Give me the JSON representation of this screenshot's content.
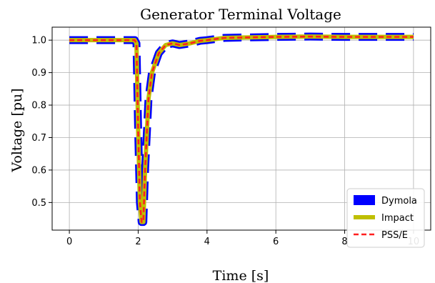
{
  "chart_data": {
    "type": "line",
    "title": "Generator Terminal Voltage",
    "xlabel": "Time [s]",
    "ylabel": "Voltage [pu]",
    "xlim": [
      -0.5,
      10.5
    ],
    "ylim": [
      0.415,
      1.04
    ],
    "x_ticks": [
      0,
      2,
      4,
      6,
      8,
      10
    ],
    "y_ticks": [
      0.5,
      0.6,
      0.7,
      0.8,
      0.9,
      1.0
    ],
    "x_tick_labels": [
      "0",
      "2",
      "4",
      "6",
      "8",
      "10"
    ],
    "y_tick_labels": [
      "0.5",
      "0.6",
      "0.7",
      "0.8",
      "0.9",
      "1.0"
    ],
    "grid": true,
    "legend_position": "bottom-right",
    "series": [
      {
        "name": "Dymola",
        "style": "dashed",
        "color": "#0000ff",
        "x": [
          0,
          1.9,
          1.95,
          2.0,
          2.05,
          2.1,
          2.15,
          2.2,
          2.3,
          2.4,
          2.6,
          2.8,
          3.0,
          3.2,
          3.5,
          3.8,
          4.0,
          4.5,
          5.0,
          6.0,
          7.0,
          8.0,
          9.0,
          10.0
        ],
        "y": [
          1.0,
          1.0,
          0.99,
          0.72,
          0.5,
          0.44,
          0.44,
          0.6,
          0.82,
          0.9,
          0.96,
          0.985,
          0.99,
          0.985,
          0.99,
          0.998,
          1.0,
          1.007,
          1.008,
          1.01,
          1.011,
          1.01,
          1.01,
          1.01
        ]
      },
      {
        "name": "Impact",
        "style": "solid",
        "color": "#bfbf00",
        "x": [
          0,
          1.9,
          1.95,
          2.0,
          2.05,
          2.1,
          2.15,
          2.2,
          2.3,
          2.4,
          2.6,
          2.8,
          3.0,
          3.2,
          3.5,
          3.8,
          4.0,
          4.5,
          5.0,
          6.0,
          7.0,
          8.0,
          9.0,
          10.0
        ],
        "y": [
          1.0,
          1.0,
          0.99,
          0.72,
          0.5,
          0.44,
          0.44,
          0.6,
          0.82,
          0.9,
          0.96,
          0.985,
          0.99,
          0.985,
          0.99,
          0.998,
          1.0,
          1.007,
          1.008,
          1.01,
          1.011,
          1.01,
          1.01,
          1.01
        ]
      },
      {
        "name": "PSS/E",
        "style": "dashed",
        "color": "#ff2020",
        "x": [
          0,
          1.9,
          1.95,
          2.0,
          2.05,
          2.1,
          2.15,
          2.2,
          2.3,
          2.4,
          2.6,
          2.8,
          3.0,
          3.2,
          3.5,
          3.8,
          4.0,
          4.5,
          5.0,
          6.0,
          7.0,
          8.0,
          9.0,
          10.0
        ],
        "y": [
          1.0,
          1.0,
          0.99,
          0.72,
          0.5,
          0.44,
          0.44,
          0.6,
          0.82,
          0.9,
          0.96,
          0.985,
          0.99,
          0.985,
          0.99,
          0.998,
          1.0,
          1.007,
          1.008,
          1.01,
          1.011,
          1.01,
          1.01,
          1.01
        ]
      }
    ]
  }
}
